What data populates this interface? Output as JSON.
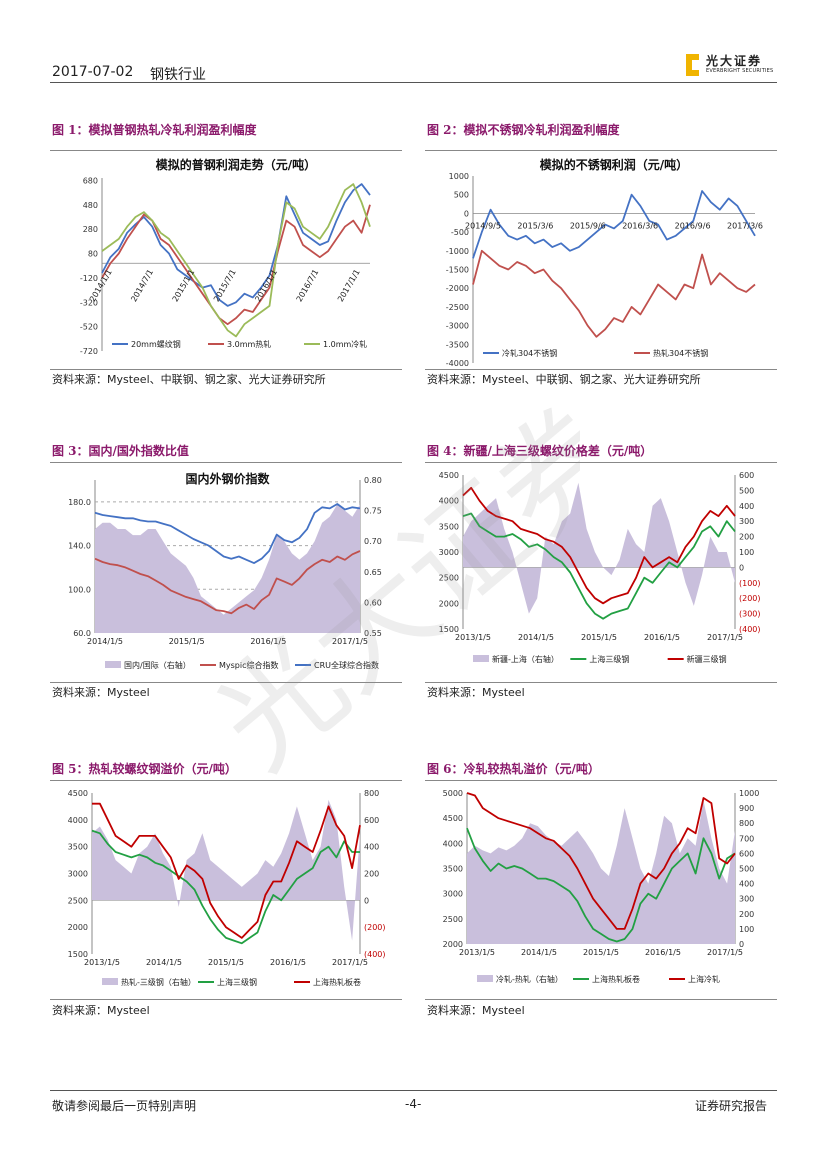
{
  "header": {
    "date": "2017-07-02",
    "industry": "钢铁行业",
    "logo_cn": "光大证券",
    "logo_en": "EVERBRIGHT SECURITIES"
  },
  "footer": {
    "left": "敬请参阅最后一页特别声明",
    "page": "-4-",
    "right": "证券研究报告"
  },
  "figures": [
    {
      "label": "图 1：模拟普钢热轧冷轧利润盈利幅度",
      "source": "资料来源：Mysteel、中联钢、钢之家、光大证券研究所"
    },
    {
      "label": "图 2：模拟不锈钢冷轧利润盈利幅度",
      "source": "资料来源：Mysteel、中联钢、钢之家、光大证券研究所"
    },
    {
      "label": "图 3：国内/国外指数比值",
      "source": "资料来源：Mysteel"
    },
    {
      "label": "图 4：新疆/上海三级螺纹价格差（元/吨）",
      "source": "资料来源：Mysteel"
    },
    {
      "label": "图 5：热轧较螺纹钢溢价（元/吨）",
      "source": "资料来源：Mysteel"
    },
    {
      "label": "图 6：冷轧较热轧溢价（元/吨）",
      "source": "资料来源：Mysteel"
    }
  ],
  "chart_data": [
    {
      "type": "line",
      "title": "模拟的普钢利润走势（元/吨）",
      "ylim": [
        -720,
        700
      ],
      "yticks": [
        "680",
        "480",
        "280",
        "80",
        "-120",
        "-320",
        "-520",
        "-720"
      ],
      "xticks": [
        "2014/1/1",
        "2014/7/1",
        "2015/1/1",
        "2015/7/1",
        "2016/1/1",
        "2016/7/1",
        "2017/1/1"
      ],
      "series": [
        {
          "name": "20mm螺纹钢",
          "color": "#4472c4",
          "values": [
            -80,
            50,
            120,
            250,
            320,
            380,
            300,
            150,
            80,
            -50,
            -100,
            -150,
            -200,
            -180,
            -300,
            -350,
            -320,
            -250,
            -280,
            -200,
            -100,
            150,
            550,
            400,
            250,
            200,
            150,
            180,
            350,
            500,
            600,
            650,
            560
          ]
        },
        {
          "name": "3.0mm热轧",
          "color": "#c0504d",
          "values": [
            -120,
            0,
            80,
            200,
            300,
            400,
            350,
            200,
            150,
            50,
            -50,
            -150,
            -250,
            -350,
            -450,
            -500,
            -450,
            -380,
            -400,
            -300,
            -200,
            100,
            350,
            300,
            150,
            100,
            50,
            100,
            200,
            300,
            350,
            250,
            480
          ]
        },
        {
          "name": "1.0mm冷轧",
          "color": "#9bbb59",
          "values": [
            100,
            150,
            200,
            300,
            380,
            420,
            350,
            250,
            200,
            100,
            0,
            -100,
            -200,
            -350,
            -450,
            -550,
            -600,
            -500,
            -450,
            -400,
            -350,
            150,
            500,
            450,
            300,
            250,
            200,
            300,
            450,
            600,
            650,
            500,
            300
          ]
        }
      ]
    },
    {
      "type": "line",
      "title": "模拟的不锈钢利润（元/吨）",
      "ylim": [
        -4000,
        1000
      ],
      "yticks": [
        "1000",
        "500",
        "0",
        "-500",
        "-1000",
        "-1500",
        "-2000",
        "-2500",
        "-3000",
        "-3500",
        "-4000"
      ],
      "xticks": [
        "2014/9/5",
        "2015/3/6",
        "2015/9/6",
        "2016/3/6",
        "2016/9/6",
        "2017/3/6"
      ],
      "series": [
        {
          "name": "冷轧304不锈钢",
          "color": "#4472c4",
          "values": [
            -1200,
            -500,
            100,
            -300,
            -600,
            -700,
            -600,
            -800,
            -700,
            -900,
            -800,
            -1000,
            -900,
            -700,
            -500,
            -300,
            -400,
            -200,
            500,
            200,
            -200,
            -300,
            -700,
            -600,
            -400,
            -200,
            600,
            300,
            100,
            400,
            200,
            -200,
            -600
          ]
        },
        {
          "name": "热轧304不锈钢",
          "color": "#c0504d",
          "values": [
            -1900,
            -1000,
            -1200,
            -1400,
            -1500,
            -1300,
            -1400,
            -1600,
            -1500,
            -1800,
            -2000,
            -2300,
            -2600,
            -3000,
            -3300,
            -3100,
            -2800,
            -2900,
            -2500,
            -2700,
            -2300,
            -1900,
            -2100,
            -2300,
            -1900,
            -2000,
            -1100,
            -1900,
            -1600,
            -1800,
            -2000,
            -2100,
            -1900
          ]
        }
      ]
    },
    {
      "type": "line",
      "title": "国内外钢价指数",
      "ylim_left": [
        60,
        200
      ],
      "yticks_left": [
        "180.0",
        "140.0",
        "100.0",
        "60.0"
      ],
      "ylim_right": [
        0.55,
        0.8
      ],
      "yticks_right": [
        "0.80",
        "0.75",
        "0.70",
        "0.65",
        "0.60",
        "0.55"
      ],
      "xticks": [
        "2014/1/5",
        "2015/1/5",
        "2016/1/5",
        "2017/1/5"
      ],
      "series": [
        {
          "name": "国内/国际（右轴）",
          "color": "#c9bfdc",
          "type": "area",
          "values": [
            0.72,
            0.73,
            0.73,
            0.72,
            0.72,
            0.71,
            0.71,
            0.72,
            0.72,
            0.7,
            0.68,
            0.67,
            0.66,
            0.64,
            0.61,
            0.6,
            0.59,
            0.58,
            0.59,
            0.6,
            0.61,
            0.62,
            0.64,
            0.67,
            0.71,
            0.7,
            0.68,
            0.67,
            0.68,
            0.7,
            0.73,
            0.74,
            0.76,
            0.75,
            0.74,
            0.76
          ]
        },
        {
          "name": "Myspic综合指数",
          "color": "#c0504d",
          "values": [
            128,
            125,
            123,
            122,
            120,
            117,
            114,
            112,
            108,
            104,
            99,
            96,
            93,
            91,
            89,
            85,
            81,
            80,
            78,
            83,
            86,
            82,
            90,
            95,
            110,
            107,
            104,
            110,
            118,
            123,
            127,
            125,
            130,
            127,
            132,
            135
          ]
        },
        {
          "name": "CRU全球综合指数",
          "color": "#4472c4",
          "values": [
            170,
            168,
            167,
            166,
            165,
            165,
            163,
            162,
            162,
            160,
            158,
            154,
            150,
            146,
            143,
            140,
            135,
            130,
            128,
            130,
            127,
            124,
            128,
            135,
            150,
            145,
            143,
            147,
            155,
            170,
            175,
            174,
            178,
            173,
            175,
            174
          ]
        }
      ]
    },
    {
      "type": "line",
      "title": "",
      "ylim_left": [
        1500,
        4500
      ],
      "yticks_left": [
        "4500",
        "4000",
        "3500",
        "3000",
        "2500",
        "2000",
        "1500"
      ],
      "ylim_right": [
        -400,
        600
      ],
      "yticks_right": [
        "600",
        "500",
        "400",
        "300",
        "200",
        "100",
        "0",
        "(100)",
        "(200)",
        "(300)",
        "(400)"
      ],
      "xticks": [
        "2013/1/5",
        "2014/1/5",
        "2015/1/5",
        "2016/1/5",
        "2017/1/5"
      ],
      "series": [
        {
          "name": "新疆-上海（右轴）",
          "color": "#c9bfdc",
          "type": "area",
          "values": [
            200,
            300,
            350,
            400,
            450,
            250,
            100,
            -100,
            -300,
            -200,
            200,
            150,
            300,
            350,
            550,
            250,
            100,
            0,
            -50,
            50,
            250,
            150,
            100,
            400,
            450,
            300,
            100,
            -100,
            -250,
            -50,
            200,
            100,
            100,
            -100
          ]
        },
        {
          "name": "上海三级钢",
          "color": "#22a043",
          "values": [
            3700,
            3750,
            3500,
            3400,
            3300,
            3300,
            3350,
            3250,
            3100,
            3150,
            3050,
            2900,
            2800,
            2600,
            2300,
            2000,
            1800,
            1700,
            1800,
            1850,
            1900,
            2200,
            2500,
            2400,
            2600,
            2800,
            2700,
            2900,
            3100,
            3400,
            3500,
            3300,
            3600,
            3400
          ]
        },
        {
          "name": "新疆三级钢",
          "color": "#c00000",
          "values": [
            4100,
            4250,
            4000,
            3800,
            3700,
            3650,
            3600,
            3450,
            3400,
            3350,
            3250,
            3200,
            3100,
            2900,
            2600,
            2300,
            2100,
            2000,
            2100,
            2150,
            2200,
            2500,
            2900,
            2700,
            2800,
            2900,
            2800,
            3100,
            3300,
            3600,
            3800,
            3700,
            3900,
            3700
          ]
        }
      ]
    },
    {
      "type": "line",
      "title": "",
      "ylim_left": [
        1500,
        4500
      ],
      "yticks_left": [
        "4500",
        "4000",
        "3500",
        "3000",
        "2500",
        "2000",
        "1500"
      ],
      "ylim_right": [
        -400,
        800
      ],
      "yticks_right": [
        "800",
        "600",
        "400",
        "200",
        "0",
        "(200)",
        "(400)"
      ],
      "xticks": [
        "2013/1/5",
        "2014/1/5",
        "2015/1/5",
        "2016/1/5",
        "2017/1/5"
      ],
      "series": [
        {
          "name": "热轧-三级钢（右轴）",
          "color": "#c9bfdc",
          "type": "area",
          "values": [
            500,
            550,
            450,
            300,
            250,
            200,
            350,
            400,
            500,
            350,
            250,
            -50,
            300,
            350,
            500,
            300,
            250,
            200,
            150,
            100,
            150,
            200,
            300,
            250,
            350,
            500,
            700,
            500,
            300,
            400,
            750,
            600,
            100,
            -300,
            500
          ]
        },
        {
          "name": "上海三级钢",
          "color": "#22a043",
          "values": [
            3800,
            3750,
            3550,
            3400,
            3350,
            3300,
            3350,
            3300,
            3200,
            3150,
            3050,
            2950,
            2850,
            2700,
            2400,
            2150,
            1950,
            1800,
            1750,
            1700,
            1800,
            1900,
            2300,
            2600,
            2500,
            2700,
            2900,
            3000,
            3100,
            3400,
            3500,
            3300,
            3600,
            3400,
            3400
          ]
        },
        {
          "name": "上海热轧板卷",
          "color": "#c00000",
          "values": [
            4300,
            4300,
            4000,
            3700,
            3600,
            3500,
            3700,
            3700,
            3700,
            3500,
            3300,
            2900,
            3150,
            3050,
            2900,
            2450,
            2200,
            2000,
            1900,
            1800,
            1950,
            2100,
            2600,
            2850,
            2850,
            3200,
            3600,
            3500,
            3400,
            3800,
            4250,
            3900,
            3700,
            3100,
            3900
          ]
        }
      ]
    },
    {
      "type": "line",
      "title": "",
      "ylim_left": [
        2000,
        5000
      ],
      "yticks_left": [
        "5000",
        "4500",
        "4000",
        "3500",
        "3000",
        "2500",
        "2000"
      ],
      "ylim_right": [
        0,
        1000
      ],
      "yticks_right": [
        "1000",
        "900",
        "800",
        "700",
        "600",
        "500",
        "400",
        "300",
        "200",
        "100",
        "0"
      ],
      "xticks": [
        "2013/1/5",
        "2014/1/5",
        "2015/1/5",
        "2016/1/5",
        "2017/1/5"
      ],
      "series": [
        {
          "name": "冷轧-热轧（右轴）",
          "color": "#c9bfdc",
          "type": "area",
          "values": [
            600,
            650,
            620,
            600,
            640,
            620,
            650,
            700,
            800,
            780,
            720,
            680,
            650,
            700,
            750,
            680,
            600,
            500,
            450,
            650,
            900,
            700,
            500,
            400,
            600,
            850,
            800,
            600,
            700,
            650,
            950,
            700,
            500,
            400,
            750
          ]
        },
        {
          "name": "上海热轧板卷",
          "color": "#22a043",
          "values": [
            4300,
            3900,
            3650,
            3450,
            3600,
            3500,
            3550,
            3500,
            3400,
            3300,
            3300,
            3250,
            3150,
            3050,
            2850,
            2550,
            2300,
            2200,
            2100,
            2050,
            2100,
            2300,
            2800,
            3000,
            2900,
            3200,
            3500,
            3650,
            3800,
            3400,
            4100,
            3800,
            3300,
            3700,
            3800
          ]
        },
        {
          "name": "上海冷轧",
          "color": "#c00000",
          "values": [
            5000,
            4950,
            4700,
            4600,
            4500,
            4450,
            4400,
            4350,
            4300,
            4200,
            4100,
            4050,
            3900,
            3750,
            3500,
            3200,
            2900,
            2700,
            2500,
            2300,
            2300,
            2700,
            3200,
            3400,
            3300,
            3500,
            3800,
            4000,
            4300,
            4200,
            4900,
            4800,
            3700,
            3600,
            3800
          ]
        }
      ]
    }
  ],
  "watermark": "光大证券"
}
